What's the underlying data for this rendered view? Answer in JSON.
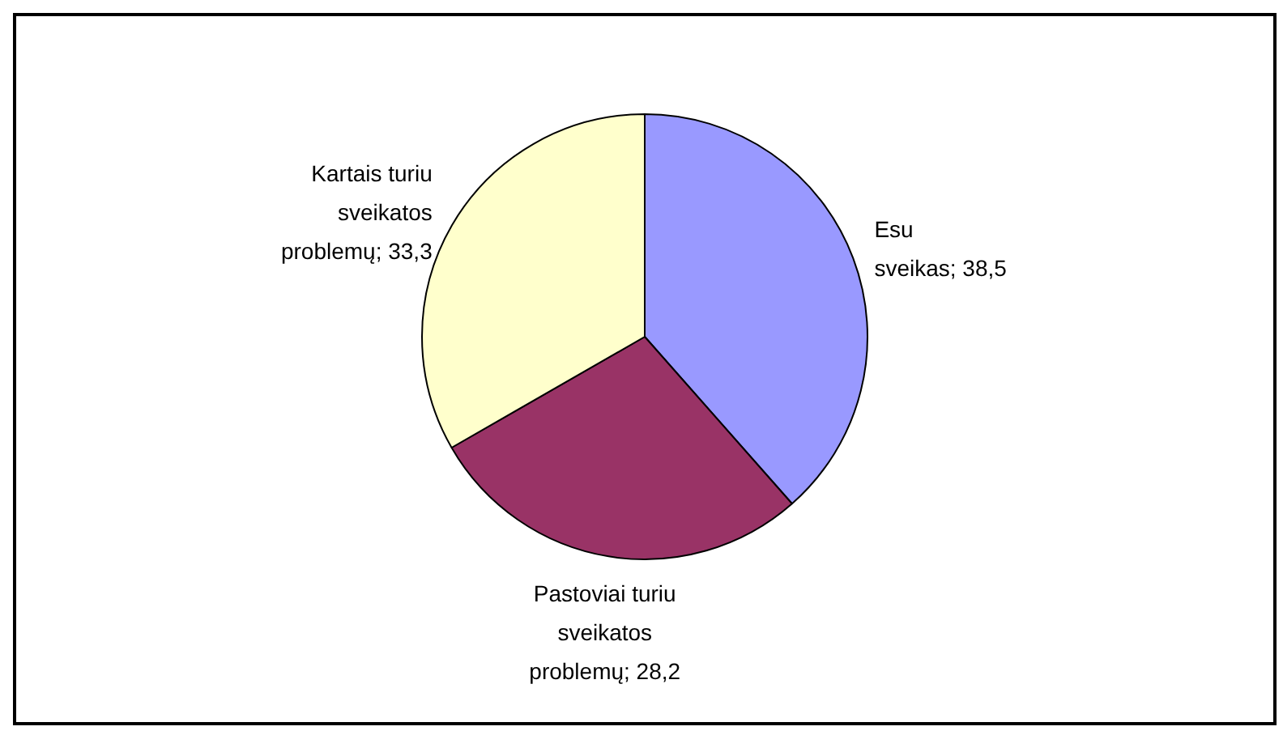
{
  "chart_data": {
    "type": "pie",
    "categories": [
      "Esu sveikas",
      "Pastoviai turiu sveikatos problemų",
      "Kartais turiu sveikatos problemų"
    ],
    "values": [
      38.5,
      28.2,
      33.3
    ],
    "value_labels": [
      "38,5",
      "28,2",
      "33,3"
    ],
    "colors": [
      "#9999ff",
      "#993366",
      "#ffffcc"
    ],
    "legend": false
  }
}
